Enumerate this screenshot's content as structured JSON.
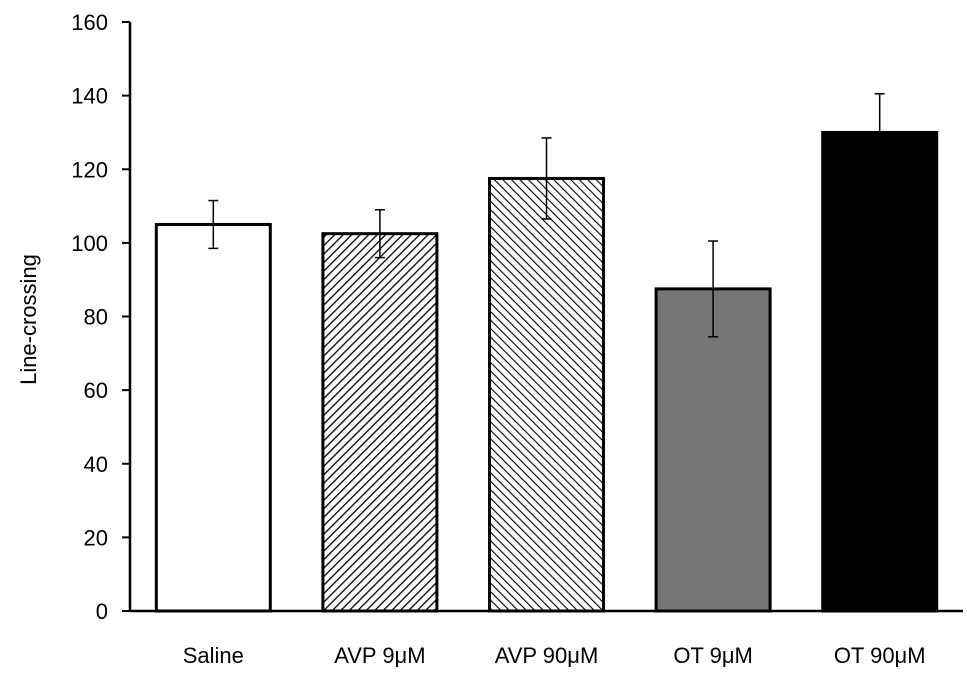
{
  "chart_data": {
    "type": "bar",
    "title": "",
    "xlabel": "",
    "ylabel": "Line-crossing",
    "ylim": [
      0,
      160
    ],
    "ytick_step": 20,
    "grid": false,
    "categories": [
      "Saline",
      "AVP 9μM",
      "AVP 90μM",
      "OT 9μM",
      "OT 90μM"
    ],
    "values": [
      105,
      102.5,
      117.5,
      87.5,
      130
    ],
    "errors": [
      6.5,
      6.5,
      11,
      13,
      10.5
    ],
    "fills": [
      "white",
      "hatch-dense",
      "hatch-sparse",
      "#767676",
      "#000000"
    ]
  }
}
